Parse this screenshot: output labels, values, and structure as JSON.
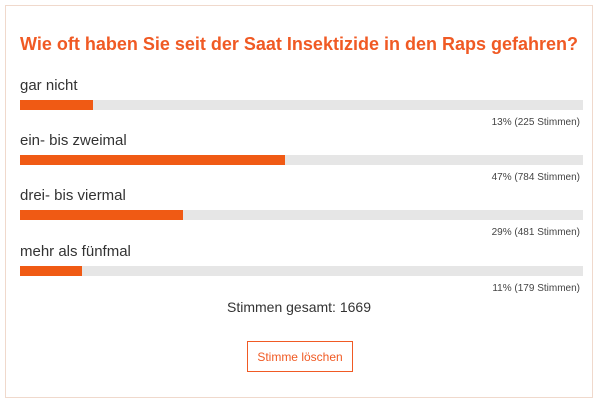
{
  "poll": {
    "question": "Wie oft haben Sie seit der Saat Insektizide in den Raps gefahren?",
    "options": [
      {
        "label": "gar nicht",
        "percent": 13,
        "result_text": "13% (225 Stimmen)"
      },
      {
        "label": "ein- bis zweimal",
        "percent": 47,
        "result_text": "47% (784 Stimmen)"
      },
      {
        "label": "drei- bis viermal",
        "percent": 29,
        "result_text": "29% (481 Stimmen)"
      },
      {
        "label": "mehr als fünfmal",
        "percent": 11,
        "result_text": "11% (179 Stimmen)"
      }
    ],
    "total_text": "Stimmen gesamt: 1669",
    "reset_button_label": "Stimme löschen"
  },
  "colors": {
    "accent": "#f05a24",
    "bar_fill": "#f05a14",
    "bar_track": "#e6e6e6"
  }
}
